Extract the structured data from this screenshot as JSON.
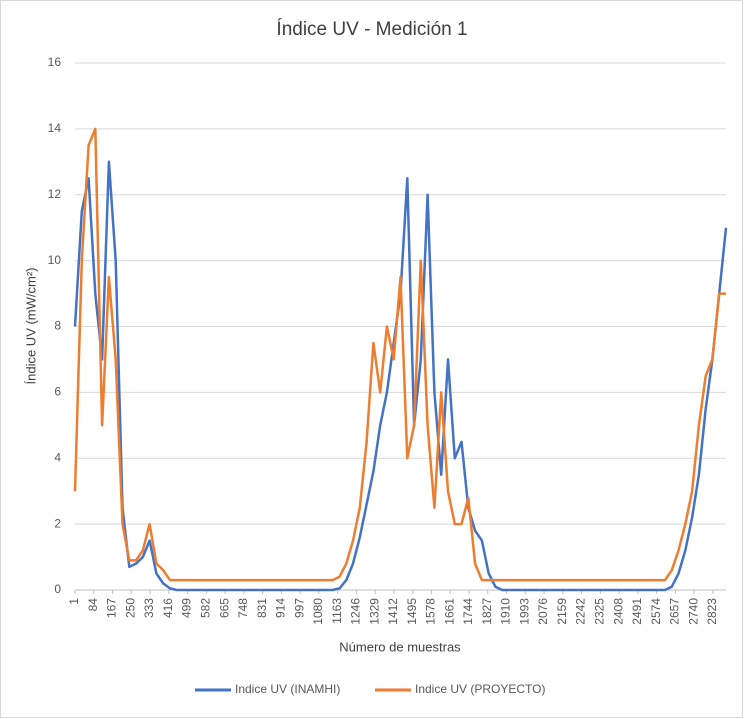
{
  "chart_data": {
    "type": "line",
    "title": "Índice UV - Medición 1",
    "x_label": "Número de muestras",
    "y_label": "Índice UV (mW/cm²)",
    "x": [
      1,
      31,
      61,
      91,
      121,
      151,
      181,
      211,
      241,
      271,
      301,
      331,
      361,
      391,
      421,
      451,
      481,
      511,
      541,
      571,
      601,
      631,
      661,
      691,
      721,
      751,
      781,
      811,
      841,
      871,
      901,
      931,
      961,
      991,
      1021,
      1051,
      1081,
      1111,
      1141,
      1171,
      1201,
      1231,
      1261,
      1291,
      1321,
      1351,
      1381,
      1411,
      1441,
      1471,
      1501,
      1531,
      1561,
      1591,
      1621,
      1651,
      1681,
      1711,
      1741,
      1771,
      1801,
      1831,
      1861,
      1891,
      1921,
      1951,
      1981,
      2011,
      2041,
      2071,
      2101,
      2131,
      2161,
      2191,
      2221,
      2251,
      2281,
      2311,
      2341,
      2371,
      2401,
      2431,
      2461,
      2491,
      2521,
      2551,
      2581,
      2611,
      2641,
      2671,
      2701,
      2731,
      2761,
      2791,
      2821,
      2851,
      2881
    ],
    "series": [
      {
        "name": "Indice UV (INAMHI)",
        "color": "#4472c4",
        "values": [
          8,
          11.5,
          12.5,
          9,
          7,
          13,
          10,
          2.5,
          0.7,
          0.8,
          1.0,
          1.5,
          0.5,
          0.2,
          0.05,
          0,
          0,
          0,
          0,
          0,
          0,
          0,
          0,
          0,
          0,
          0,
          0,
          0,
          0,
          0,
          0,
          0,
          0,
          0,
          0,
          0,
          0,
          0,
          0,
          0.05,
          0.3,
          0.8,
          1.6,
          2.6,
          3.6,
          5,
          6,
          7.5,
          9,
          12.5,
          5,
          7,
          12,
          6,
          3.5,
          7,
          4,
          4.5,
          2.5,
          1.8,
          1.5,
          0.5,
          0.1,
          0,
          0,
          0,
          0,
          0,
          0,
          0,
          0,
          0,
          0,
          0,
          0,
          0,
          0,
          0,
          0,
          0,
          0,
          0,
          0,
          0,
          0,
          0,
          0,
          0,
          0.1,
          0.5,
          1.2,
          2.2,
          3.5,
          5.5,
          7,
          9,
          11
        ]
      },
      {
        "name": "Indice UV (PROYECTO)",
        "color": "#ed7d31",
        "values": [
          3,
          10,
          13.5,
          14,
          5,
          9.5,
          7,
          2,
          0.9,
          0.9,
          1.2,
          2.0,
          0.8,
          0.6,
          0.3,
          0.3,
          0.3,
          0.3,
          0.3,
          0.3,
          0.3,
          0.3,
          0.3,
          0.3,
          0.3,
          0.3,
          0.3,
          0.3,
          0.3,
          0.3,
          0.3,
          0.3,
          0.3,
          0.3,
          0.3,
          0.3,
          0.3,
          0.3,
          0.3,
          0.4,
          0.8,
          1.5,
          2.5,
          4.5,
          7.5,
          6,
          8,
          7,
          9.5,
          4,
          5,
          10,
          5,
          2.5,
          6,
          3,
          2,
          2,
          2.8,
          0.8,
          0.3,
          0.3,
          0.3,
          0.3,
          0.3,
          0.3,
          0.3,
          0.3,
          0.3,
          0.3,
          0.3,
          0.3,
          0.3,
          0.3,
          0.3,
          0.3,
          0.3,
          0.3,
          0.3,
          0.3,
          0.3,
          0.3,
          0.3,
          0.3,
          0.3,
          0.3,
          0.3,
          0.3,
          0.6,
          1.2,
          2,
          3,
          5,
          6.5,
          7,
          9,
          9
        ]
      }
    ],
    "xlim": [
      1,
      2881
    ],
    "xticks": [
      1,
      84,
      167,
      250,
      333,
      416,
      499,
      582,
      665,
      748,
      831,
      914,
      997,
      1080,
      1163,
      1246,
      1329,
      1412,
      1495,
      1578,
      1661,
      1744,
      1827,
      1910,
      1993,
      2076,
      2159,
      2242,
      2325,
      2408,
      2491,
      2574,
      2657,
      2740,
      2823
    ],
    "ylim": [
      0,
      16
    ],
    "yticks": [
      0,
      2,
      4,
      6,
      8,
      10,
      12,
      14,
      16
    ],
    "grid": true,
    "legend": "bottom"
  }
}
